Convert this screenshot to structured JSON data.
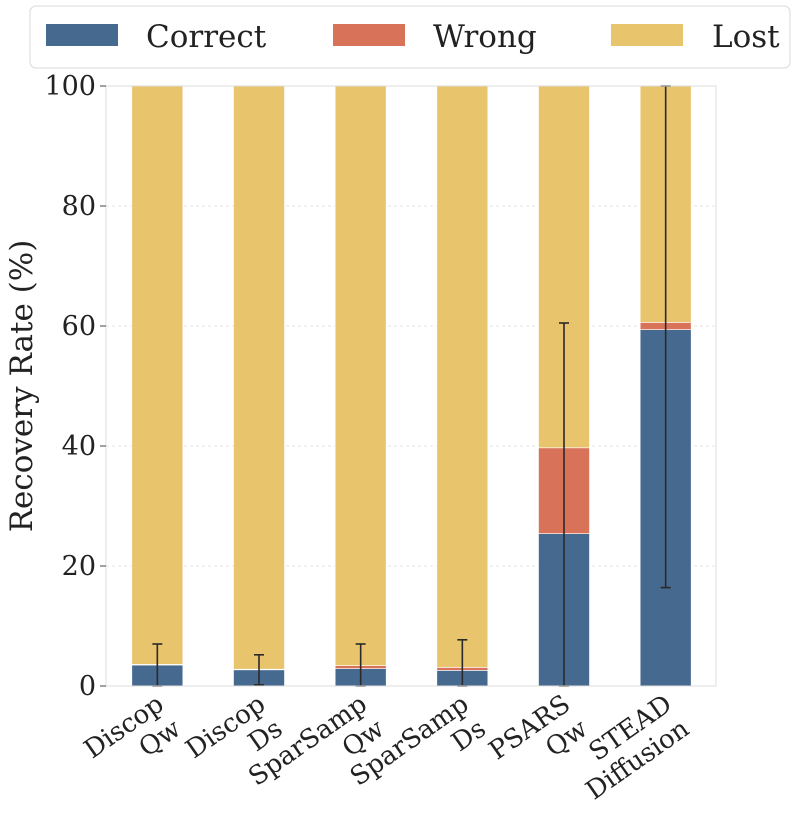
{
  "chart_data": {
    "type": "bar",
    "stacked": true,
    "categories": [
      [
        "Discop",
        "Qw"
      ],
      [
        "Discop",
        "Ds"
      ],
      [
        "SparSamp",
        "Qw"
      ],
      [
        "SparSamp",
        "Ds"
      ],
      [
        "PSARS",
        "Qw"
      ],
      [
        "STEAD",
        "Diffusion"
      ]
    ],
    "series": [
      {
        "name": "Correct",
        "color": "#46698f",
        "values": [
          3.5,
          2.7,
          2.9,
          2.6,
          25.4,
          59.4
        ]
      },
      {
        "name": "Wrong",
        "color": "#d8735a",
        "values": [
          0.1,
          0.1,
          0.5,
          0.5,
          14.3,
          1.2
        ]
      },
      {
        "name": "Lost",
        "color": "#e8c46c",
        "values": [
          96.4,
          97.2,
          96.6,
          96.9,
          60.3,
          39.4
        ]
      }
    ],
    "error_bars": {
      "center": [
        3.5,
        2.7,
        3.5,
        3.8,
        25.4,
        59.4
      ],
      "low": [
        0.0,
        0.2,
        0.0,
        0.0,
        0.0,
        16.4
      ],
      "high": [
        7.0,
        5.2,
        7.0,
        7.7,
        60.5,
        100.0
      ]
    },
    "ylabel": "Recovery Rate (%)",
    "xlabel": "",
    "ylim": [
      0,
      100
    ],
    "yticks": [
      0,
      20,
      40,
      60,
      80,
      100
    ],
    "grid": true,
    "legend": "top"
  }
}
